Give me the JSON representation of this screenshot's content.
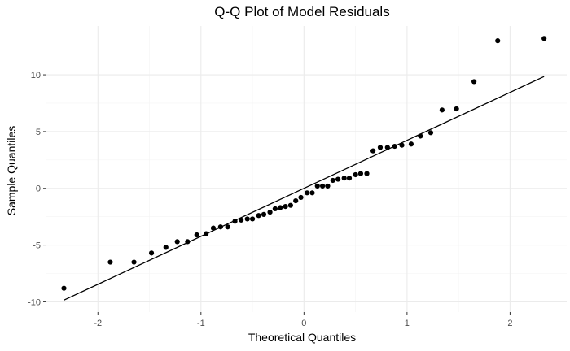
{
  "chart_data": {
    "type": "scatter",
    "title": "Q-Q Plot of Model Residuals",
    "xlabel": "Theoretical Quantiles",
    "ylabel": "Sample Quantiles",
    "xlim": [
      -2.5,
      2.55
    ],
    "ylim": [
      -10.9,
      14.3
    ],
    "x_ticks": [
      -2,
      -1,
      0,
      1,
      2
    ],
    "x_tick_labels": [
      "-2",
      "-1",
      "0",
      "1",
      "2"
    ],
    "y_ticks": [
      -10,
      -5,
      0,
      5,
      10
    ],
    "y_tick_labels": [
      "-10",
      "-5",
      "0",
      "5",
      "10"
    ],
    "grid": true,
    "points": {
      "x": [
        -2.33,
        -1.88,
        -1.65,
        -1.48,
        -1.34,
        -1.23,
        -1.13,
        -1.04,
        -0.95,
        -0.88,
        -0.81,
        -0.74,
        -0.67,
        -0.61,
        -0.55,
        -0.5,
        -0.44,
        -0.39,
        -0.33,
        -0.28,
        -0.23,
        -0.18,
        -0.13,
        -0.08,
        -0.03,
        0.03,
        0.08,
        0.13,
        0.18,
        0.23,
        0.28,
        0.33,
        0.39,
        0.44,
        0.5,
        0.55,
        0.61,
        0.67,
        0.74,
        0.81,
        0.88,
        0.95,
        1.04,
        1.13,
        1.23,
        1.34,
        1.48,
        1.65,
        1.88,
        2.33
      ],
      "y": [
        -8.8,
        -6.5,
        -6.5,
        -5.7,
        -5.2,
        -4.7,
        -4.7,
        -4.1,
        -4.0,
        -3.5,
        -3.4,
        -3.4,
        -2.9,
        -2.8,
        -2.7,
        -2.7,
        -2.4,
        -2.3,
        -2.1,
        -1.8,
        -1.7,
        -1.6,
        -1.5,
        -1.1,
        -0.8,
        -0.4,
        -0.4,
        0.2,
        0.2,
        0.2,
        0.7,
        0.8,
        0.9,
        0.9,
        1.2,
        1.3,
        1.3,
        3.3,
        3.6,
        3.6,
        3.7,
        3.8,
        3.9,
        4.6,
        4.9,
        6.9,
        7.0,
        9.4,
        13.0,
        13.2
      ]
    },
    "reference_line": {
      "x": [
        -2.33,
        2.33
      ],
      "y": [
        -9.85,
        9.85
      ]
    },
    "colors": {
      "points": "#000000",
      "line": "#000000",
      "background": "#ffffff",
      "grid_major": "#ebebeb",
      "grid_minor": "#f4f4f4"
    }
  }
}
